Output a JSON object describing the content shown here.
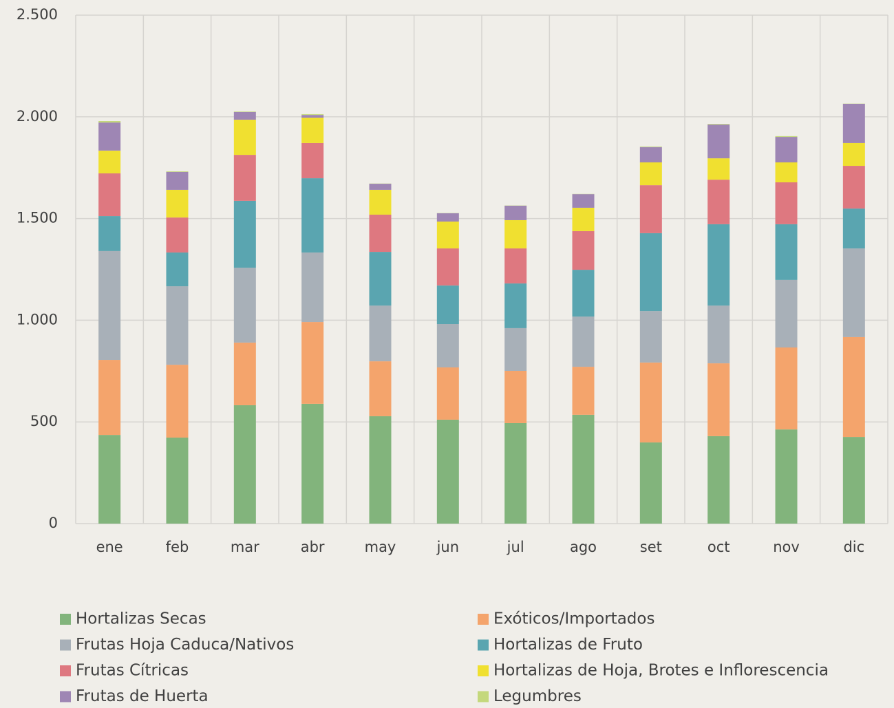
{
  "chart_data": {
    "type": "stacked_bar",
    "categories": [
      "ene",
      "feb",
      "mar",
      "abr",
      "may",
      "jun",
      "jul",
      "ago",
      "set",
      "oct",
      "nov",
      "dic"
    ],
    "series": [
      {
        "name": "Hortalizas Secas",
        "color": "#82b47c",
        "values": [
          436,
          423,
          582,
          589,
          528,
          511,
          494,
          535,
          399,
          430,
          463,
          426
        ]
      },
      {
        "name": "Exóticos/Importados",
        "color": "#f4a46c",
        "values": [
          369,
          358,
          308,
          402,
          270,
          257,
          257,
          236,
          393,
          358,
          403,
          491
        ]
      },
      {
        "name": "Frutas Hoja Caduca/Nativos",
        "color": "#a8b0b8",
        "values": [
          535,
          386,
          368,
          342,
          274,
          213,
          210,
          247,
          253,
          284,
          332,
          436
        ]
      },
      {
        "name": "Hortalizas de Fruto",
        "color": "#5aa5b0",
        "values": [
          172,
          166,
          329,
          365,
          264,
          190,
          220,
          230,
          383,
          400,
          274,
          196
        ]
      },
      {
        "name": "Frutas Cítricas",
        "color": "#de7880",
        "values": [
          210,
          172,
          226,
          173,
          183,
          182,
          172,
          190,
          236,
          219,
          206,
          210
        ]
      },
      {
        "name": "Hortalizas de Hoja, Brotes e Inflorescencia",
        "color": "#f0e030",
        "values": [
          112,
          136,
          173,
          125,
          122,
          132,
          139,
          115,
          112,
          105,
          98,
          112
        ]
      },
      {
        "name": "Frutas de Huerta",
        "color": "#9e86b4",
        "values": [
          138,
          88,
          37,
          13,
          30,
          41,
          71,
          67,
          75,
          166,
          125,
          193
        ]
      },
      {
        "name": "Legumbres",
        "color": "#c4d87c",
        "values": [
          7,
          3,
          3,
          4,
          1,
          1,
          1,
          1,
          3,
          3,
          4,
          1
        ]
      }
    ],
    "ylim": [
      0,
      2500
    ],
    "yticks": [
      0,
      500,
      {
        "value": 1000,
        "label": "1.000"
      },
      {
        "value": 1500,
        "label": "1.500"
      },
      {
        "value": 2000,
        "label": "2.000"
      },
      {
        "value": 2500,
        "label": "2.500"
      }
    ],
    "grid": true,
    "legend": "bottom"
  }
}
